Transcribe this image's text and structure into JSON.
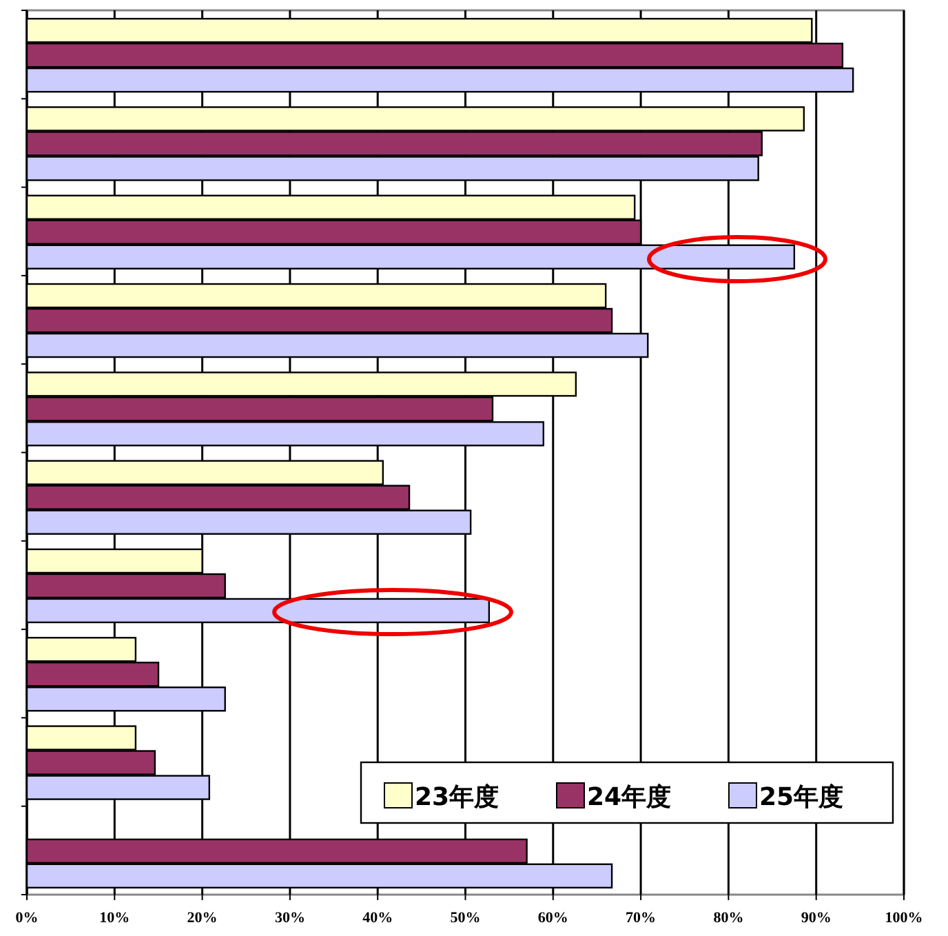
{
  "chart_data": {
    "type": "bar",
    "orientation": "horizontal",
    "categories": [
      null,
      null,
      null,
      null,
      null,
      null,
      null,
      null,
      null,
      null
    ],
    "series": [
      {
        "name": "23年度",
        "color": "#ffffcc",
        "values": [
          89.5,
          88.6,
          69.3,
          66,
          62.6,
          40.6,
          20,
          12.4,
          12.4,
          null
        ]
      },
      {
        "name": "24年度",
        "color": "#993366",
        "values": [
          93,
          83.8,
          70,
          66.7,
          53.1,
          43.6,
          22.6,
          15,
          14.6,
          57
        ]
      },
      {
        "name": "25年度",
        "color": "#ccccff",
        "values": [
          94.2,
          83.4,
          87.5,
          70.8,
          58.9,
          50.6,
          52.7,
          22.6,
          20.8,
          66.7
        ]
      }
    ],
    "xlim": [
      0,
      100
    ],
    "xticks": [
      {
        "value": 0,
        "label": "0%"
      },
      {
        "value": 10,
        "label": "10%"
      },
      {
        "value": 20,
        "label": "20%"
      },
      {
        "value": 30,
        "label": "30%"
      },
      {
        "value": 40,
        "label": "40%"
      },
      {
        "value": 50,
        "label": "50%"
      },
      {
        "value": 60,
        "label": "60%"
      },
      {
        "value": 70,
        "label": "70%"
      },
      {
        "value": 80,
        "label": "80%"
      },
      {
        "value": 90,
        "label": "90%"
      },
      {
        "value": 100,
        "label": "100%"
      }
    ],
    "grid": "x",
    "legend": "bottom right"
  }
}
